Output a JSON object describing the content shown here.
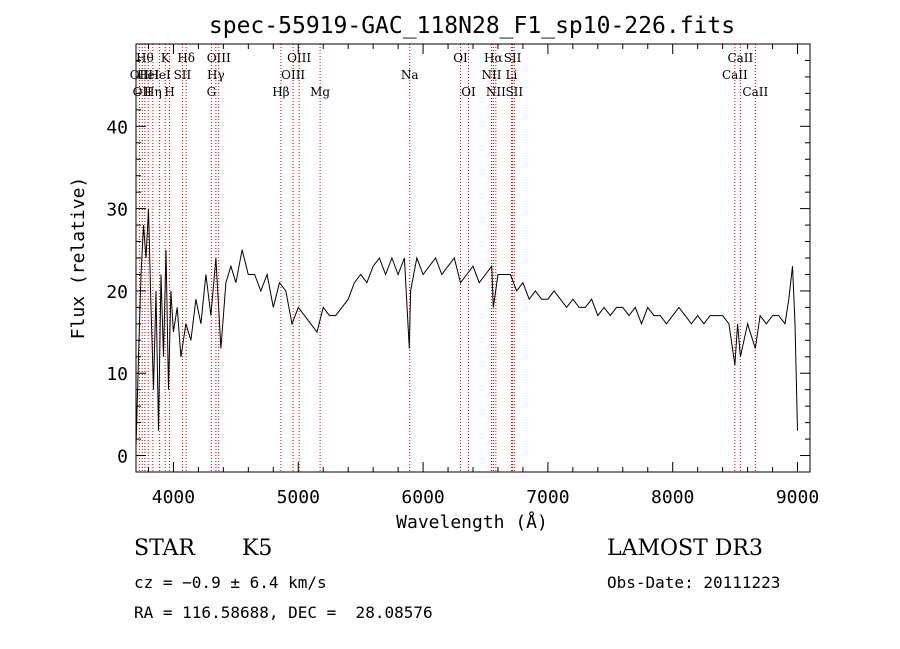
{
  "chart_data": {
    "type": "line",
    "title": "spec-55919-GAC_118N28_F1_sp10-226.fits",
    "xlabel": "Wavelength (Å)",
    "ylabel": "Flux (relative)",
    "xlim": [
      3700,
      9100
    ],
    "ylim": [
      -2,
      50
    ],
    "xticks": [
      4000,
      5000,
      6000,
      7000,
      8000,
      9000
    ],
    "yticks": [
      0,
      10,
      20,
      30,
      40
    ],
    "grid": false,
    "line_color": "#000000",
    "marker_color": "#cc0000",
    "series": [
      {
        "x": [
          3700,
          3720,
          3740,
          3760,
          3780,
          3800,
          3820,
          3840,
          3860,
          3880,
          3900,
          3920,
          3940,
          3960,
          3980,
          4000,
          4030,
          4060,
          4100,
          4140,
          4180,
          4220,
          4260,
          4300,
          4340,
          4380,
          4420,
          4460,
          4500,
          4550,
          4600,
          4650,
          4700,
          4750,
          4800,
          4850,
          4900,
          4950,
          5000,
          5050,
          5100,
          5150,
          5200,
          5250,
          5300,
          5350,
          5400,
          5450,
          5500,
          5550,
          5600,
          5650,
          5700,
          5750,
          5800,
          5850,
          5890,
          5900,
          5950,
          6000,
          6050,
          6100,
          6150,
          6200,
          6250,
          6300,
          6350,
          6400,
          6450,
          6500,
          6550,
          6563,
          6600,
          6650,
          6700,
          6750,
          6800,
          6850,
          6900,
          6950,
          7000,
          7050,
          7100,
          7150,
          7200,
          7250,
          7300,
          7350,
          7400,
          7450,
          7500,
          7550,
          7600,
          7650,
          7700,
          7750,
          7800,
          7850,
          7900,
          7950,
          8000,
          8050,
          8100,
          8150,
          8200,
          8250,
          8300,
          8350,
          8400,
          8450,
          8498,
          8520,
          8542,
          8600,
          8662,
          8700,
          8750,
          8800,
          8850,
          8900,
          8930,
          8960,
          8980,
          9000
        ],
        "y": [
          1,
          12,
          22,
          28,
          24,
          30,
          18,
          8,
          20,
          3,
          22,
          12,
          25,
          8,
          20,
          15,
          18,
          12,
          16,
          14,
          19,
          16,
          22,
          17,
          24,
          13,
          21,
          23,
          21,
          25,
          22,
          22,
          20,
          22,
          18,
          21,
          20,
          16,
          18,
          17,
          16,
          15,
          18,
          17,
          17,
          18,
          19,
          21,
          22,
          21,
          23,
          24,
          22,
          24,
          22,
          24,
          13,
          20,
          24,
          22,
          23,
          24,
          22,
          23,
          24,
          21,
          22,
          23,
          21,
          22,
          23,
          18,
          22,
          22,
          22,
          20,
          21,
          19,
          20,
          19,
          19,
          20,
          19,
          18,
          19,
          18,
          18,
          19,
          17,
          18,
          17,
          18,
          18,
          17,
          18,
          16,
          18,
          17,
          17,
          16,
          17,
          18,
          17,
          16,
          17,
          16,
          17,
          17,
          17,
          16,
          11,
          16,
          12,
          16,
          13,
          17,
          16,
          17,
          17,
          16,
          19,
          23,
          16,
          3
        ]
      }
    ],
    "line_markers": [
      {
        "x": 3727,
        "label": "OII",
        "row": 2
      },
      {
        "x": 3750,
        "label": "OII",
        "row": 3
      },
      {
        "x": 3771,
        "label": "Hθ",
        "row": 1
      },
      {
        "x": 3798,
        "label": "HeI",
        "row": 2
      },
      {
        "x": 3835,
        "label": "Hη",
        "row": 3
      },
      {
        "x": 3889,
        "label": "HeI",
        "row": 2
      },
      {
        "x": 3934,
        "label": "K",
        "row": 1
      },
      {
        "x": 3969,
        "label": "H",
        "row": 3
      },
      {
        "x": 4072,
        "label": "SII",
        "row": 2
      },
      {
        "x": 4102,
        "label": "Hδ",
        "row": 1
      },
      {
        "x": 4304,
        "label": "G",
        "row": 3
      },
      {
        "x": 4340,
        "label": "Hγ",
        "row": 2
      },
      {
        "x": 4363,
        "label": "OIII",
        "row": 1
      },
      {
        "x": 4861,
        "label": "Hβ",
        "row": 3
      },
      {
        "x": 4959,
        "label": "OIII",
        "row": 2
      },
      {
        "x": 5007,
        "label": "OIII",
        "row": 1
      },
      {
        "x": 5175,
        "label": "Mg",
        "row": 3
      },
      {
        "x": 5893,
        "label": "Na",
        "row": 2
      },
      {
        "x": 6300,
        "label": "OI",
        "row": 1
      },
      {
        "x": 6364,
        "label": "OI",
        "row": 3
      },
      {
        "x": 6548,
        "label": "NII",
        "row": 2
      },
      {
        "x": 6563,
        "label": "Hα",
        "row": 1
      },
      {
        "x": 6583,
        "label": "NII",
        "row": 3
      },
      {
        "x": 6708,
        "label": "Li",
        "row": 2
      },
      {
        "x": 6717,
        "label": "SII",
        "row": 1
      },
      {
        "x": 6731,
        "label": "SII",
        "row": 3
      },
      {
        "x": 8498,
        "label": "CaII",
        "row": 2
      },
      {
        "x": 8542,
        "label": "CaII",
        "row": 1
      },
      {
        "x": 8662,
        "label": "CaII",
        "row": 3
      }
    ]
  },
  "info": {
    "class": "STAR",
    "subclass": "K5",
    "survey": "LAMOST DR3",
    "cz": "cz = −0.9 ± 6.4 km/s",
    "obs_date": "Obs-Date: 20111223",
    "radec": "RA = 116.58688, DEC =  28.08576"
  }
}
